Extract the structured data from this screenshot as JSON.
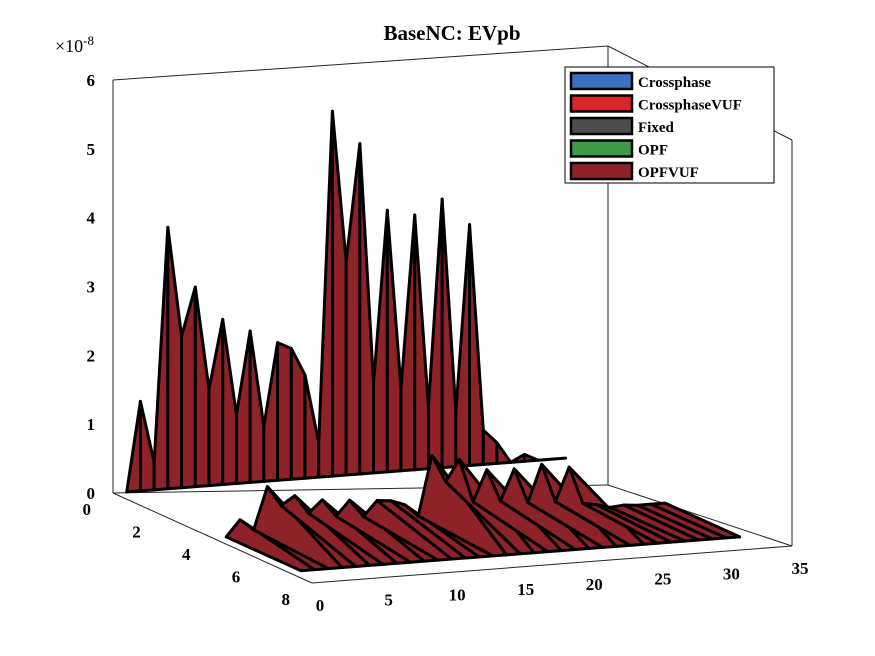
{
  "chart_data": {
    "type": "surface3d",
    "title": "BaseNC: EVpb",
    "z_exponent_label": "×10",
    "z_exponent": "-8",
    "z_ticks": [
      "0",
      "1",
      "2",
      "3",
      "4",
      "5",
      "6"
    ],
    "x_ticks": [
      "0",
      "5",
      "10",
      "15",
      "20",
      "25",
      "30",
      "35"
    ],
    "y_ticks": [
      "0",
      "2",
      "4",
      "6",
      "8"
    ],
    "zlim": [
      0,
      6
    ],
    "xlim": [
      0,
      35
    ],
    "ylim": [
      0,
      8
    ],
    "legend_position": "top-right",
    "series": [
      {
        "name": "Crossphase",
        "color": "#3a6fc2"
      },
      {
        "name": "CrossphaseVUF",
        "color": "#d8262d"
      },
      {
        "name": "Fixed",
        "color": "#4d4d4d"
      },
      {
        "name": "OPF",
        "color": "#3c9a48"
      },
      {
        "name": "OPFVUF",
        "color": "#8e2229"
      }
    ],
    "x": [
      1,
      2,
      3,
      4,
      5,
      6,
      7,
      8,
      9,
      10,
      11,
      12,
      13,
      14,
      15,
      16,
      17,
      18,
      19,
      20,
      21,
      22,
      23,
      24,
      25,
      26,
      27,
      28,
      29,
      30,
      31,
      32,
      33
    ],
    "peak_values": [
      0.0,
      1.3,
      0.4,
      3.8,
      2.2,
      2.9,
      1.4,
      2.4,
      1.0,
      2.2,
      0.8,
      2.0,
      1.9,
      1.5,
      0.5,
      5.3,
      3.1,
      4.8,
      1.3,
      3.8,
      1.2,
      3.7,
      0.9,
      3.9,
      0.8,
      3.5,
      0.5,
      0.3,
      0.0,
      0.1,
      0.0,
      0.0,
      0.0
    ]
  }
}
